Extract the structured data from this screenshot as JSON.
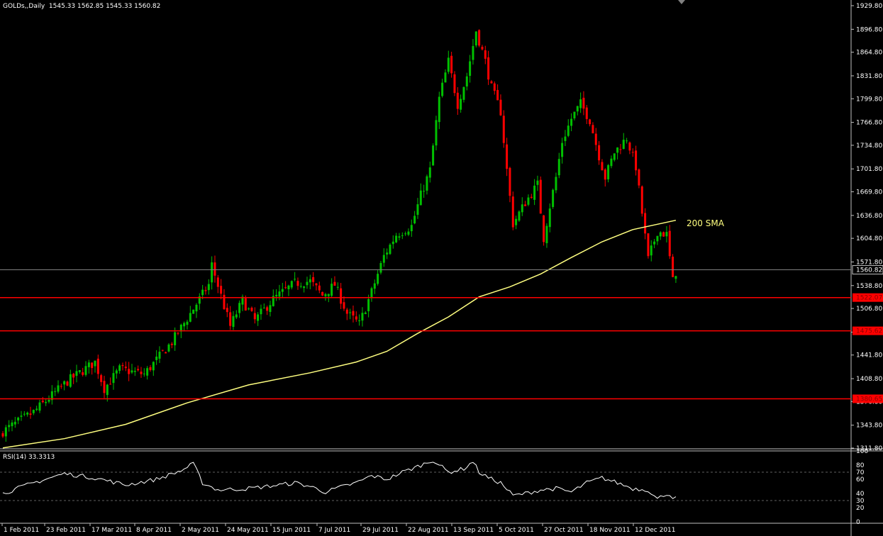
{
  "window": {
    "symbol": "GOLDs,,Daily",
    "ohlc": "1545.33 1562.85 1545.33 1560.82"
  },
  "colors": {
    "bull": "#00c000",
    "bear": "#ff0000",
    "sma": "#ffff80",
    "level": "#ff0000",
    "text": "#ffffff",
    "rsi": "#ffffff"
  },
  "chart_data": [
    {
      "type": "candlestick",
      "title": "GOLDs,,Daily 1545.33 1562.85 1545.33 1560.82",
      "ylim": [
        1311.8,
        1929.8
      ],
      "y_ticks": [
        "1929.80",
        "1896.80",
        "1864.80",
        "1831.80",
        "1799.80",
        "1766.80",
        "1734.80",
        "1701.80",
        "1669.80",
        "1636.80",
        "1604.80",
        "1571.80",
        "1538.80",
        "1506.80",
        "1473.80",
        "1441.80",
        "1408.80",
        "1376.80",
        "1343.80",
        "1311.80"
      ],
      "x_ticks": [
        "1 Feb 2011",
        "23 Feb 2011",
        "17 Mar 2011",
        "8 Apr 2011",
        "2 May 2011",
        "24 May 2011",
        "15 Jun 2011",
        "7 Jul 2011",
        "29 Jul 2011",
        "22 Aug 2011",
        "13 Sep 2011",
        "5 Oct 2011",
        "27 Oct 2011",
        "18 Nov 2011",
        "12 Dec 2011"
      ],
      "current_price": 1560.82,
      "current_price_label": "1560.82",
      "horizontal_levels": [
        {
          "value": 1522.07,
          "label": "1522.07"
        },
        {
          "value": 1475.62,
          "label": "1475.62"
        },
        {
          "value": 1380.65,
          "label": "1380.65"
        }
      ],
      "sma_label": "200 SMA",
      "close_anchors": [
        [
          0,
          1335
        ],
        [
          10,
          1362
        ],
        [
          21,
          1405
        ],
        [
          30,
          1432
        ],
        [
          33,
          1395
        ],
        [
          38,
          1422
        ],
        [
          46,
          1415
        ],
        [
          55,
          1460
        ],
        [
          60,
          1493
        ],
        [
          67,
          1540
        ],
        [
          68,
          1568
        ],
        [
          72,
          1510
        ],
        [
          74,
          1482
        ],
        [
          78,
          1518
        ],
        [
          82,
          1490
        ],
        [
          88,
          1520
        ],
        [
          95,
          1542
        ],
        [
          100,
          1545
        ],
        [
          104,
          1525
        ],
        [
          108,
          1540
        ],
        [
          112,
          1500
        ],
        [
          116,
          1485
        ],
        [
          120,
          1530
        ],
        [
          124,
          1580
        ],
        [
          128,
          1610
        ],
        [
          133,
          1622
        ],
        [
          136,
          1665
        ],
        [
          139,
          1700
        ],
        [
          142,
          1800
        ],
        [
          145,
          1852
        ],
        [
          148,
          1792
        ],
        [
          151,
          1832
        ],
        [
          154,
          1895
        ],
        [
          157,
          1852
        ],
        [
          159,
          1815
        ],
        [
          162,
          1782
        ],
        [
          164,
          1700
        ],
        [
          166,
          1625
        ],
        [
          170,
          1655
        ],
        [
          174,
          1680
        ],
        [
          176,
          1605
        ],
        [
          178,
          1650
        ],
        [
          180,
          1690
        ],
        [
          182,
          1740
        ],
        [
          185,
          1772
        ],
        [
          188,
          1793
        ],
        [
          191,
          1770
        ],
        [
          194,
          1720
        ],
        [
          196,
          1690
        ],
        [
          199,
          1725
        ],
        [
          203,
          1745
        ],
        [
          206,
          1705
        ],
        [
          208,
          1640
        ],
        [
          210,
          1575
        ],
        [
          213,
          1615
        ],
        [
          216,
          1610
        ],
        [
          218,
          1545
        ],
        [
          219,
          1558
        ]
      ],
      "sma_points": [
        [
          0,
          1312
        ],
        [
          20,
          1325
        ],
        [
          40,
          1345
        ],
        [
          60,
          1375
        ],
        [
          80,
          1400
        ],
        [
          100,
          1417
        ],
        [
          115,
          1432
        ],
        [
          125,
          1447
        ],
        [
          135,
          1472
        ],
        [
          145,
          1495
        ],
        [
          155,
          1523
        ],
        [
          165,
          1537
        ],
        [
          175,
          1555
        ],
        [
          185,
          1578
        ],
        [
          195,
          1600
        ],
        [
          205,
          1617
        ],
        [
          219,
          1630
        ]
      ]
    },
    {
      "type": "line",
      "title": "RSI(14) 33.3313",
      "ylim": [
        0,
        100
      ],
      "y_ticks": [
        "100",
        "80",
        "70",
        "60",
        "40",
        "30",
        "20",
        "0"
      ],
      "dashed_levels": [
        30,
        70
      ],
      "rsi_anchors": [
        [
          0,
          40
        ],
        [
          10,
          55
        ],
        [
          20,
          68
        ],
        [
          30,
          62
        ],
        [
          40,
          52
        ],
        [
          50,
          60
        ],
        [
          58,
          72
        ],
        [
          62,
          82
        ],
        [
          65,
          55
        ],
        [
          70,
          45
        ],
        [
          80,
          47
        ],
        [
          90,
          52
        ],
        [
          95,
          55
        ],
        [
          100,
          50
        ],
        [
          105,
          42
        ],
        [
          110,
          49
        ],
        [
          115,
          55
        ],
        [
          120,
          65
        ],
        [
          125,
          60
        ],
        [
          130,
          70
        ],
        [
          135,
          78
        ],
        [
          140,
          87
        ],
        [
          145,
          70
        ],
        [
          150,
          75
        ],
        [
          153,
          85
        ],
        [
          155,
          70
        ],
        [
          158,
          62
        ],
        [
          162,
          55
        ],
        [
          166,
          37
        ],
        [
          170,
          40
        ],
        [
          175,
          45
        ],
        [
          180,
          47
        ],
        [
          185,
          42
        ],
        [
          190,
          55
        ],
        [
          195,
          62
        ],
        [
          200,
          55
        ],
        [
          205,
          47
        ],
        [
          210,
          45
        ],
        [
          213,
          32
        ],
        [
          216,
          40
        ],
        [
          219,
          33
        ]
      ]
    }
  ]
}
